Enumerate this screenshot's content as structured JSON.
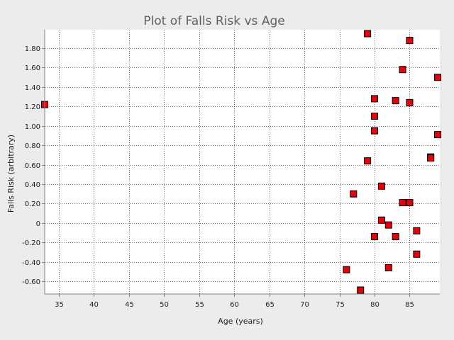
{
  "chart_data": {
    "type": "scatter",
    "title": "Plot of Falls Risk vs Age",
    "xlabel": "Age (years)",
    "ylabel": "Falls Risk (arbitrary)",
    "xlim": [
      33,
      89.3
    ],
    "ylim": [
      -0.73,
      1.99
    ],
    "x_ticks": [
      35,
      40,
      45,
      50,
      55,
      60,
      65,
      70,
      75,
      80,
      85
    ],
    "y_ticks": [
      -0.6,
      -0.4,
      -0.2,
      0,
      0.2,
      0.4,
      0.6,
      0.8,
      1.0,
      1.2,
      1.4,
      1.6,
      1.8
    ],
    "y_tick_labels": [
      "-0.60",
      "-0.40",
      "-0.20",
      "0",
      "0.20",
      "0.40",
      "0.60",
      "0.80",
      "1.00",
      "1.20",
      "1.40",
      "1.60",
      "1.80"
    ],
    "grid": true,
    "marker": {
      "shape": "square",
      "fill": "#e8000a",
      "stroke": "#000000"
    },
    "points": [
      {
        "x": 33,
        "y": 1.22
      },
      {
        "x": 79,
        "y": 1.95
      },
      {
        "x": 85,
        "y": 1.88
      },
      {
        "x": 84,
        "y": 1.58
      },
      {
        "x": 89,
        "y": 1.5
      },
      {
        "x": 80,
        "y": 1.28
      },
      {
        "x": 83,
        "y": 1.26
      },
      {
        "x": 85,
        "y": 1.24
      },
      {
        "x": 80,
        "y": 1.1
      },
      {
        "x": 80,
        "y": 0.95
      },
      {
        "x": 89,
        "y": 0.91
      },
      {
        "x": 88,
        "y": 0.68
      },
      {
        "x": 88,
        "y": 0.67
      },
      {
        "x": 79,
        "y": 0.64
      },
      {
        "x": 81,
        "y": 0.38
      },
      {
        "x": 77,
        "y": 0.3
      },
      {
        "x": 84,
        "y": 0.21
      },
      {
        "x": 85,
        "y": 0.21
      },
      {
        "x": 81,
        "y": 0.03
      },
      {
        "x": 82,
        "y": -0.02
      },
      {
        "x": 86,
        "y": -0.08
      },
      {
        "x": 80,
        "y": -0.14
      },
      {
        "x": 83,
        "y": -0.14
      },
      {
        "x": 86,
        "y": -0.32
      },
      {
        "x": 82,
        "y": -0.46
      },
      {
        "x": 76,
        "y": -0.48
      },
      {
        "x": 78,
        "y": -0.69
      }
    ]
  }
}
